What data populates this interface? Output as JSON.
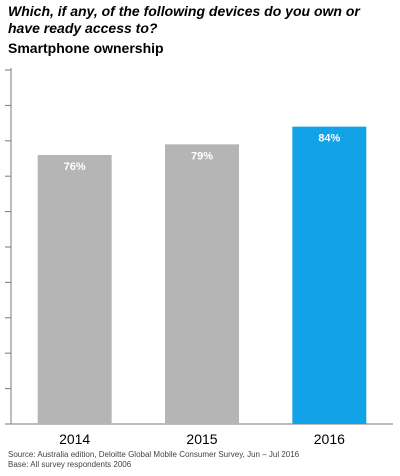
{
  "question": "Which, if any, of the following devices do you own or have ready access to?",
  "colors": {
    "bar_default": "#b5b5b5",
    "bar_highlight": "#12a2e8",
    "value_label": "#ffffff",
    "axis": "#7a7a7a"
  },
  "chart_data": {
    "type": "bar",
    "title": "Smartphone ownership",
    "xlabel": "",
    "ylabel": "",
    "categories": [
      "2014",
      "2015",
      "2016"
    ],
    "values": [
      76,
      79,
      84
    ],
    "value_labels": [
      "76%",
      "79%",
      "84%"
    ],
    "highlight_index": 2,
    "ylim": [
      0,
      100
    ],
    "grid": false,
    "legend": "none"
  },
  "footer": {
    "source": "Source: Australia edition, Deloitte Global Mobile Consumer Survey, Jun – Jul 2016",
    "base": "Base: All survey respondents 2006"
  }
}
